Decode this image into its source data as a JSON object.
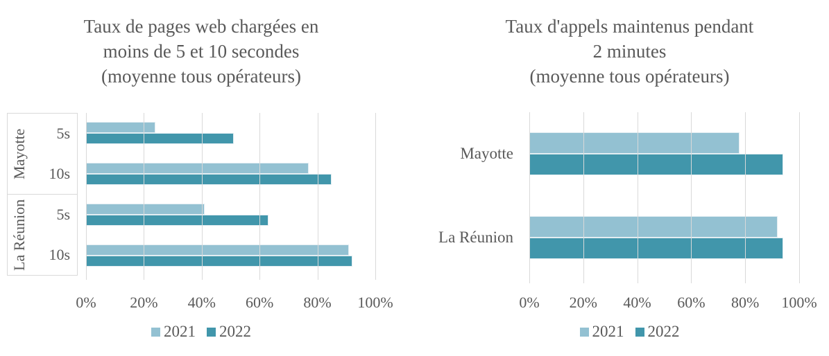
{
  "page": {
    "background": "#ffffff",
    "text_color": "#595959"
  },
  "styles": {
    "series_2021_color": "#93c1d2",
    "series_2022_color": "#4196ab",
    "gridline_color": "#d9d9d9",
    "axis_box_border_color": "#d9d9d9"
  },
  "chart_data": [
    {
      "type": "bar",
      "orientation": "horizontal",
      "title": "Taux de pages web chargées en\nmoins de 5 et 10 secondes\n(moyenne tous opérateurs)",
      "categories": [
        "Mayotte 5s",
        "Mayotte 10s",
        "La Réunion 5s",
        "La Réunion 10s"
      ],
      "category_groups": [
        {
          "label": "Mayotte",
          "sublabels": [
            "5s",
            "10s"
          ]
        },
        {
          "label": "La Réunion",
          "sublabels": [
            "5s",
            "10s"
          ]
        }
      ],
      "series": [
        {
          "name": "2021",
          "color": "#93c1d2",
          "values": [
            24,
            77,
            41,
            91
          ]
        },
        {
          "name": "2022",
          "color": "#4196ab",
          "values": [
            51,
            85,
            63,
            92
          ]
        }
      ],
      "xlim": [
        0,
        100
      ],
      "x_tick_labels": [
        "0%",
        "20%",
        "40%",
        "60%",
        "80%",
        "100%"
      ],
      "grid": true,
      "legend_position": "bottom"
    },
    {
      "type": "bar",
      "orientation": "horizontal",
      "title": "Taux d'appels maintenus pendant\n2 minutes\n(moyenne tous opérateurs)",
      "categories": [
        "Mayotte",
        "La Réunion"
      ],
      "series": [
        {
          "name": "2021",
          "color": "#93c1d2",
          "values": [
            78,
            92
          ]
        },
        {
          "name": "2022",
          "color": "#4196ab",
          "values": [
            94,
            94
          ]
        }
      ],
      "xlim": [
        0,
        100
      ],
      "x_tick_labels": [
        "0%",
        "20%",
        "40%",
        "60%",
        "80%",
        "100%"
      ],
      "grid": true,
      "legend_position": "bottom"
    }
  ]
}
